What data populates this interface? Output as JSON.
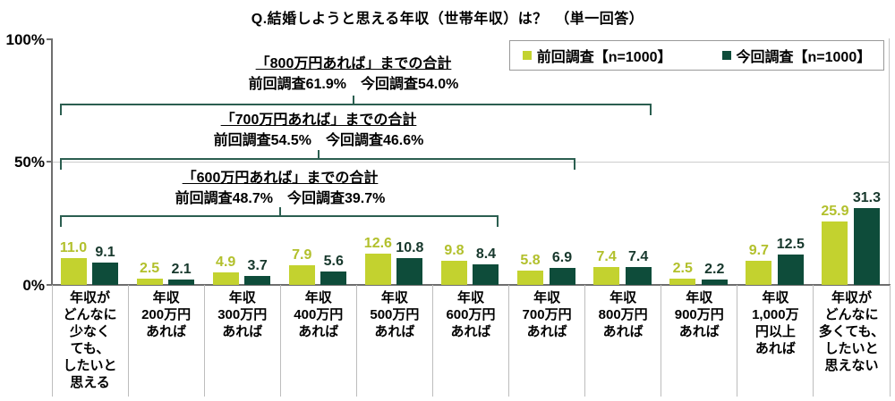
{
  "title": "Q.結婚しようと思える年収（世帯年収）は？　（単一回答）",
  "legend": {
    "items": [
      {
        "label": "前回調査【n=1000】",
        "color": "#c3d22f"
      },
      {
        "label": "今回調査【n=1000】",
        "color": "#0e4c3a"
      }
    ]
  },
  "y_axis": {
    "ticks": [
      "100%",
      "50%",
      "0%"
    ]
  },
  "chart_data": {
    "type": "bar",
    "title": "Q.結婚しようと思える年収（世帯年収）は？　（単一回答）",
    "categories": [
      "年収が\nどんなに\n少なく\nても、\nしたいと\n思える",
      "年収\n200万円\nあれば",
      "年収\n300万円\nあれば",
      "年収\n400万円\nあれば",
      "年収\n500万円\nあれば",
      "年収\n600万円\nあれば",
      "年収\n700万円\nあれば",
      "年収\n800万円\nあれば",
      "年収\n900万円\nあれば",
      "年収\n1,000万\n円以上\nあれば",
      "年収が\nどんなに\n多くても、\nしたいと\n思えない"
    ],
    "series": [
      {
        "name": "前回調査【n=1000】",
        "color": "#c3d22f",
        "label_color": "#b2c02c",
        "values": [
          11.0,
          2.5,
          4.9,
          7.9,
          12.6,
          9.8,
          5.8,
          7.4,
          2.5,
          9.7,
          25.9
        ]
      },
      {
        "name": "今回調査【n=1000】",
        "color": "#0e4c3a",
        "label_color": "#17382c",
        "values": [
          9.1,
          2.1,
          3.7,
          5.6,
          10.8,
          8.4,
          6.9,
          7.4,
          2.2,
          12.5,
          31.3
        ]
      }
    ],
    "ylabel": "",
    "xlabel": "",
    "ylim": [
      0,
      100
    ],
    "yticks_pct": [
      0,
      50,
      100
    ],
    "grid": "50% line only",
    "legend_position": "top-right",
    "bracket_color": "#2b5e50",
    "annotations": [
      {
        "title": "「600万円あれば」までの合計",
        "values": "前回調査48.7%　今回調査39.7%",
        "end_category_index": 5
      },
      {
        "title": "「700万円あれば」までの合計",
        "values": "前回調査54.5%　今回調査46.6%",
        "end_category_index": 6
      },
      {
        "title": "「800万円あれば」までの合計",
        "values": "前回調査61.9%　今回調査54.0%",
        "end_category_index": 7
      }
    ]
  }
}
